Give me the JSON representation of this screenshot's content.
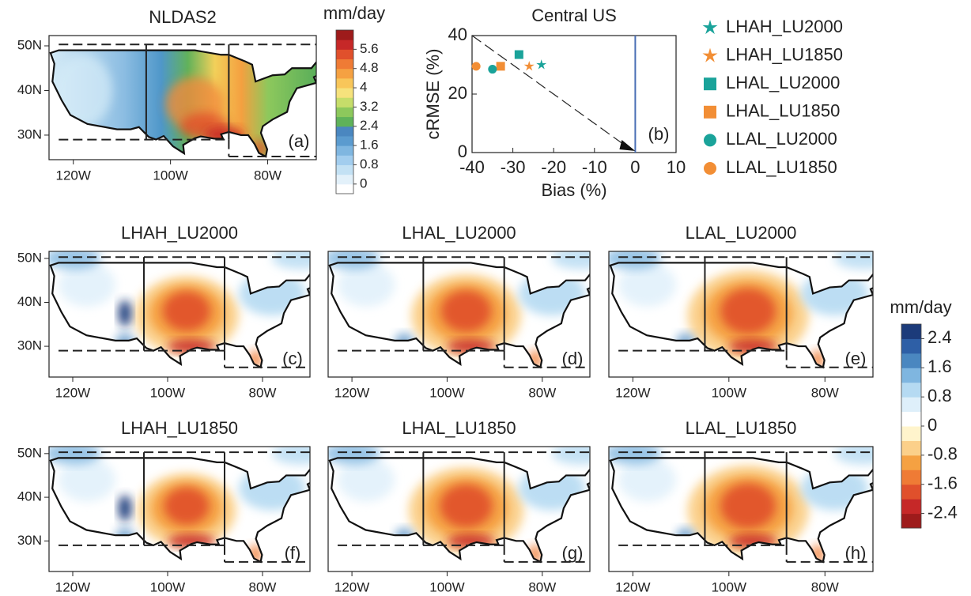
{
  "chart_data": [
    {
      "type": "map",
      "title": "NLDAS2",
      "panel_label": "(a)",
      "xlim": [
        -125,
        -70
      ],
      "ylim": [
        24.5,
        52.3
      ],
      "xticks": [
        {
          "value": -120,
          "label": "120W"
        },
        {
          "value": -100,
          "label": "100W"
        },
        {
          "value": -80,
          "label": "80W"
        }
      ],
      "yticks": [
        {
          "value": 30,
          "label": "30N"
        },
        {
          "value": 40,
          "label": "40N"
        },
        {
          "value": 50,
          "label": "50N"
        }
      ]
    },
    {
      "type": "scatter",
      "title": "Central US",
      "panel_label": "(b)",
      "x_label": "Bias (%)",
      "y_label": "cRMSE (%)",
      "xlim": [
        -40,
        10
      ],
      "ylim": [
        0,
        40
      ],
      "xticks": [
        -40,
        -30,
        -20,
        -10,
        0,
        10
      ],
      "yticks": [
        0,
        20,
        40
      ],
      "vline": 0,
      "vline_color": "#4a6fb5",
      "series": [
        {
          "name": "LHAH_LU2000",
          "color": "#1aa39a",
          "marker": "star",
          "x": [
            -23
          ],
          "y": [
            30
          ]
        },
        {
          "name": "LHAH_LU1850",
          "color": "#f28e35",
          "marker": "star",
          "x": [
            -26
          ],
          "y": [
            29.5
          ]
        },
        {
          "name": "LHAL_LU2000",
          "color": "#1aa39a",
          "marker": "square",
          "x": [
            -28.5
          ],
          "y": [
            33.5
          ]
        },
        {
          "name": "LHAL_LU1850",
          "color": "#f28e35",
          "marker": "square",
          "x": [
            -33
          ],
          "y": [
            29.5
          ]
        },
        {
          "name": "LLAL_LU2000",
          "color": "#1aa39a",
          "marker": "circle",
          "x": [
            -35
          ],
          "y": [
            28.5
          ]
        },
        {
          "name": "LLAL_LU1850",
          "color": "#f28e35",
          "marker": "circle",
          "x": [
            -39
          ],
          "y": [
            29.5
          ]
        }
      ]
    },
    {
      "type": "colorbar",
      "title": "mm/day",
      "lim": [
        -0.4,
        6.4
      ],
      "ticks": [
        0,
        0.8,
        1.6,
        2.4,
        3.2,
        4,
        4.8,
        5.6
      ],
      "colors": [
        "#ffffff",
        "#e3f1fa",
        "#c3e1f4",
        "#a2cdee",
        "#7fb6e0",
        "#5b9bcf",
        "#4a87c0",
        "#5fb25a",
        "#8dc85c",
        "#c6dd6a",
        "#f6e27c",
        "#f8c65a",
        "#f5a142",
        "#ef7b35",
        "#e0502c",
        "#c62828",
        "#9e1b1b"
      ]
    },
    {
      "type": "map",
      "title": "LHAH_LU2000",
      "panel_label": "(c)",
      "xlim": [
        -125,
        -70
      ],
      "ylim": [
        23,
        51.6
      ],
      "xticks": [
        {
          "value": -120,
          "label": "120W"
        },
        {
          "value": -100,
          "label": "100W"
        },
        {
          "value": -80,
          "label": "80W"
        }
      ],
      "yticks": [
        {
          "value": 30,
          "label": "30N"
        },
        {
          "value": 40,
          "label": "40N"
        },
        {
          "value": 50,
          "label": "50N"
        }
      ]
    },
    {
      "type": "map",
      "title": "LHAL_LU2000",
      "panel_label": "(d)",
      "xlim": [
        -125,
        -70
      ],
      "ylim": [
        23,
        51.6
      ],
      "xticks": [
        {
          "value": -120,
          "label": "120W"
        },
        {
          "value": -100,
          "label": "100W"
        },
        {
          "value": -80,
          "label": "80W"
        }
      ]
    },
    {
      "type": "map",
      "title": "LLAL_LU2000",
      "panel_label": "(e)",
      "xlim": [
        -125,
        -70
      ],
      "ylim": [
        23,
        51.6
      ],
      "xticks": [
        {
          "value": -120,
          "label": "120W"
        },
        {
          "value": -100,
          "label": "100W"
        },
        {
          "value": -80,
          "label": "80W"
        }
      ]
    },
    {
      "type": "map",
      "title": "LHAH_LU1850",
      "panel_label": "(f)",
      "xlim": [
        -125,
        -70
      ],
      "ylim": [
        23,
        51.6
      ],
      "xticks": [
        {
          "value": -120,
          "label": "120W"
        },
        {
          "value": -100,
          "label": "100W"
        },
        {
          "value": -80,
          "label": "80W"
        }
      ],
      "yticks": [
        {
          "value": 30,
          "label": "30N"
        },
        {
          "value": 40,
          "label": "40N"
        },
        {
          "value": 50,
          "label": "50N"
        }
      ]
    },
    {
      "type": "map",
      "title": "LHAL_LU1850",
      "panel_label": "(g)",
      "xlim": [
        -125,
        -70
      ],
      "ylim": [
        23,
        51.6
      ],
      "xticks": [
        {
          "value": -120,
          "label": "120W"
        },
        {
          "value": -100,
          "label": "100W"
        },
        {
          "value": -80,
          "label": "80W"
        }
      ]
    },
    {
      "type": "map",
      "title": "LLAL_LU1850",
      "panel_label": "(h)",
      "xlim": [
        -125,
        -70
      ],
      "ylim": [
        23,
        51.6
      ],
      "xticks": [
        {
          "value": -120,
          "label": "120W"
        },
        {
          "value": -100,
          "label": "100W"
        },
        {
          "value": -80,
          "label": "80W"
        }
      ]
    },
    {
      "type": "colorbar",
      "title": "mm/day",
      "lim": [
        -2.8,
        2.8
      ],
      "ticks": [
        -2.4,
        -1.6,
        -0.8,
        0,
        0.8,
        1.6,
        2.4
      ],
      "colors": [
        "#9e1b1b",
        "#c62828",
        "#e0502c",
        "#ef7b35",
        "#f5a142",
        "#fbd08a",
        "#fff4cc",
        "#ffffff",
        "#deeffa",
        "#b5daf2",
        "#7fb6e0",
        "#4a87c0",
        "#2e5fa6",
        "#1c3b7a"
      ]
    }
  ]
}
